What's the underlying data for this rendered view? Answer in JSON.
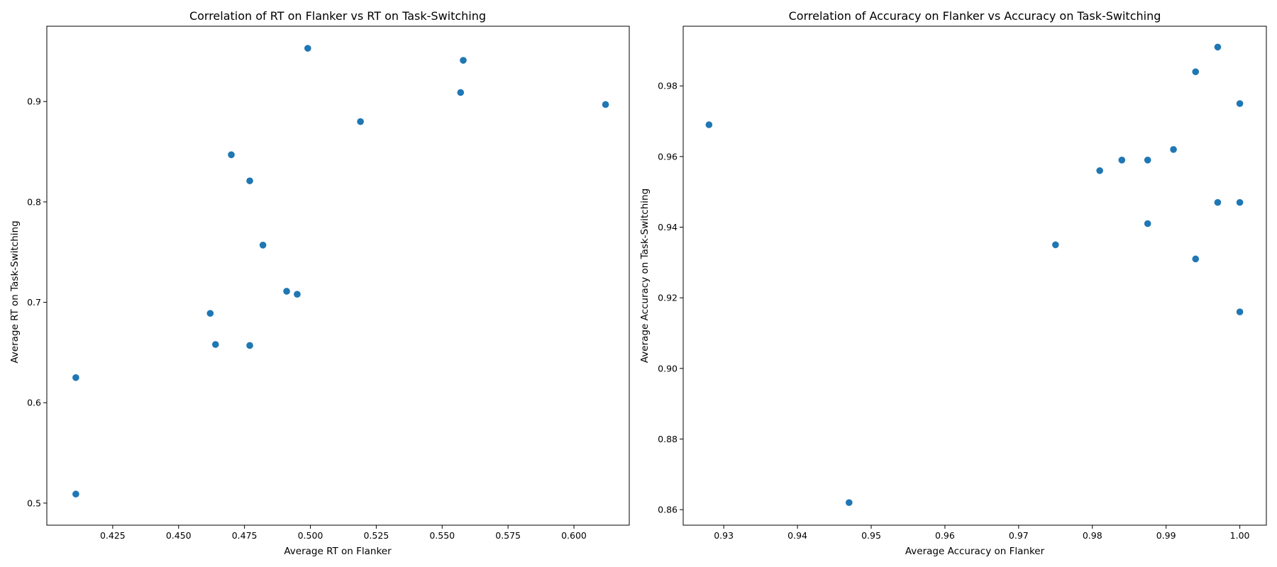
{
  "chart_data": [
    {
      "type": "scatter",
      "title": "Correlation of RT on Flanker vs RT on Task-Switching",
      "xlabel": "Average RT on Flanker",
      "ylabel": "Average RT on Task-Switching",
      "xlim": [
        0.4,
        0.621
      ],
      "ylim": [
        0.478,
        0.975
      ],
      "xticks": [
        0.425,
        0.45,
        0.475,
        0.5,
        0.525,
        0.55,
        0.575,
        0.6
      ],
      "xtick_labels": [
        "0.425",
        "0.450",
        "0.475",
        "0.500",
        "0.525",
        "0.550",
        "0.575",
        "0.600"
      ],
      "yticks": [
        0.5,
        0.6,
        0.7,
        0.8,
        0.9
      ],
      "ytick_labels": [
        "0.5",
        "0.6",
        "0.7",
        "0.8",
        "0.9"
      ],
      "grid": false,
      "color": "#1f77b4",
      "points": [
        {
          "x": 0.411,
          "y": 0.509
        },
        {
          "x": 0.411,
          "y": 0.625
        },
        {
          "x": 0.462,
          "y": 0.689
        },
        {
          "x": 0.464,
          "y": 0.658
        },
        {
          "x": 0.47,
          "y": 0.847
        },
        {
          "x": 0.477,
          "y": 0.821
        },
        {
          "x": 0.477,
          "y": 0.657
        },
        {
          "x": 0.482,
          "y": 0.757
        },
        {
          "x": 0.491,
          "y": 0.711
        },
        {
          "x": 0.495,
          "y": 0.708
        },
        {
          "x": 0.499,
          "y": 0.953
        },
        {
          "x": 0.519,
          "y": 0.88
        },
        {
          "x": 0.557,
          "y": 0.909
        },
        {
          "x": 0.558,
          "y": 0.941
        },
        {
          "x": 0.612,
          "y": 0.897
        }
      ]
    },
    {
      "type": "scatter",
      "title": "Correlation of Accuracy on Flanker vs Accuracy on Task-Switching",
      "xlabel": "Average Accuracy on Flanker",
      "ylabel": "Average Accuracy on Task-Switching",
      "xlim": [
        0.9245,
        1.0036
      ],
      "ylim": [
        0.8556,
        0.9969
      ],
      "xticks": [
        0.93,
        0.94,
        0.95,
        0.96,
        0.97,
        0.98,
        0.99,
        1.0
      ],
      "xtick_labels": [
        "0.93",
        "0.94",
        "0.95",
        "0.96",
        "0.97",
        "0.98",
        "0.99",
        "1.00"
      ],
      "yticks": [
        0.86,
        0.88,
        0.9,
        0.92,
        0.94,
        0.96,
        0.98
      ],
      "ytick_labels": [
        "0.86",
        "0.88",
        "0.90",
        "0.92",
        "0.94",
        "0.96",
        "0.98"
      ],
      "grid": false,
      "color": "#1f77b4",
      "points": [
        {
          "x": 0.928,
          "y": 0.969
        },
        {
          "x": 0.947,
          "y": 0.862
        },
        {
          "x": 0.975,
          "y": 0.935
        },
        {
          "x": 0.981,
          "y": 0.956
        },
        {
          "x": 0.984,
          "y": 0.959
        },
        {
          "x": 0.9875,
          "y": 0.959
        },
        {
          "x": 0.9875,
          "y": 0.941
        },
        {
          "x": 0.991,
          "y": 0.962
        },
        {
          "x": 0.994,
          "y": 0.984
        },
        {
          "x": 0.994,
          "y": 0.931
        },
        {
          "x": 0.997,
          "y": 0.991
        },
        {
          "x": 0.997,
          "y": 0.947
        },
        {
          "x": 1.0,
          "y": 0.975
        },
        {
          "x": 1.0,
          "y": 0.947
        },
        {
          "x": 1.0,
          "y": 0.916
        }
      ]
    }
  ]
}
